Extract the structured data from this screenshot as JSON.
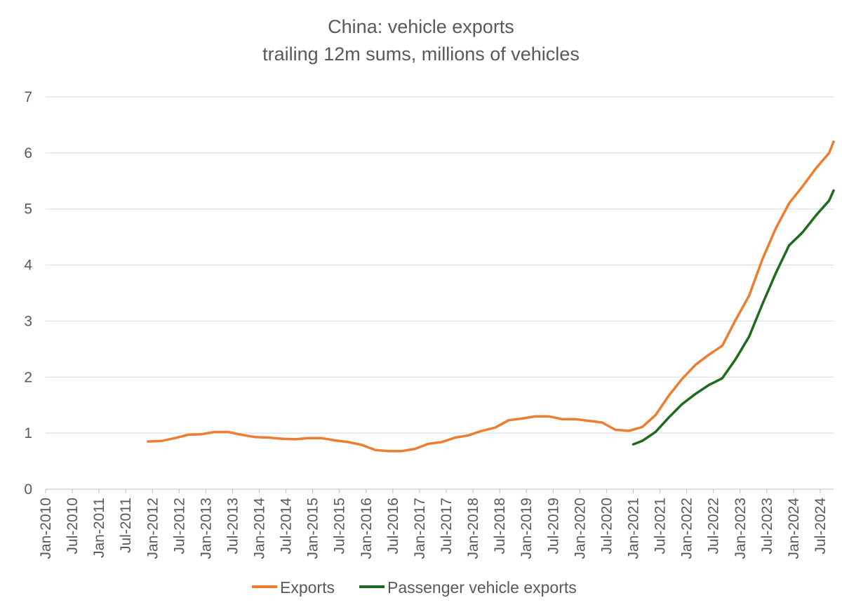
{
  "chart_data": {
    "type": "line",
    "title": "China: vehicle exports",
    "subtitle": "trailing 12m sums, millions of vehicles",
    "xlabel": "",
    "ylabel": "",
    "ylim": [
      0,
      7
    ],
    "yticks": [
      "0",
      "1",
      "2",
      "3",
      "4",
      "5",
      "6",
      "7"
    ],
    "xlim": [
      "2010-01",
      "2024-10"
    ],
    "xticks": [
      "Jan-2010",
      "Jul-2010",
      "Jan-2011",
      "Jul-2011",
      "Jan-2012",
      "Jul-2012",
      "Jan-2013",
      "Jul-2013",
      "Jan-2014",
      "Jul-2014",
      "Jan-2015",
      "Jul-2015",
      "Jan-2016",
      "Jul-2016",
      "Jan-2017",
      "Jul-2017",
      "Jan-2018",
      "Jul-2018",
      "Jan-2019",
      "Jul-2019",
      "Jan-2020",
      "Jul-2020",
      "Jan-2021",
      "Jul-2021",
      "Jan-2022",
      "Jul-2022",
      "Jan-2023",
      "Jul-2023",
      "Jan-2024",
      "Jul-2024"
    ],
    "grid": true,
    "legend_position": "bottom",
    "series": [
      {
        "name": "Exports",
        "color": "#ED7D31",
        "points": [
          [
            "2011-12",
            0.85
          ],
          [
            "2012-03",
            0.86
          ],
          [
            "2012-06",
            0.91
          ],
          [
            "2012-09",
            0.97
          ],
          [
            "2012-12",
            0.98
          ],
          [
            "2013-03",
            1.02
          ],
          [
            "2013-06",
            1.02
          ],
          [
            "2013-09",
            0.97
          ],
          [
            "2013-12",
            0.93
          ],
          [
            "2014-03",
            0.92
          ],
          [
            "2014-06",
            0.9
          ],
          [
            "2014-09",
            0.89
          ],
          [
            "2014-12",
            0.91
          ],
          [
            "2015-03",
            0.91
          ],
          [
            "2015-06",
            0.87
          ],
          [
            "2015-09",
            0.84
          ],
          [
            "2015-12",
            0.79
          ],
          [
            "2016-03",
            0.7
          ],
          [
            "2016-06",
            0.68
          ],
          [
            "2016-09",
            0.68
          ],
          [
            "2016-12",
            0.72
          ],
          [
            "2017-03",
            0.81
          ],
          [
            "2017-06",
            0.84
          ],
          [
            "2017-09",
            0.92
          ],
          [
            "2017-12",
            0.96
          ],
          [
            "2018-03",
            1.04
          ],
          [
            "2018-06",
            1.1
          ],
          [
            "2018-09",
            1.23
          ],
          [
            "2018-12",
            1.26
          ],
          [
            "2019-03",
            1.3
          ],
          [
            "2019-06",
            1.3
          ],
          [
            "2019-09",
            1.25
          ],
          [
            "2019-12",
            1.25
          ],
          [
            "2020-03",
            1.22
          ],
          [
            "2020-06",
            1.19
          ],
          [
            "2020-09",
            1.06
          ],
          [
            "2020-12",
            1.04
          ],
          [
            "2021-03",
            1.11
          ],
          [
            "2021-06",
            1.32
          ],
          [
            "2021-09",
            1.67
          ],
          [
            "2021-12",
            1.97
          ],
          [
            "2022-03",
            2.22
          ],
          [
            "2022-06",
            2.4
          ],
          [
            "2022-09",
            2.56
          ],
          [
            "2022-12",
            3.02
          ],
          [
            "2023-03",
            3.45
          ],
          [
            "2023-06",
            4.1
          ],
          [
            "2023-09",
            4.65
          ],
          [
            "2023-12",
            5.1
          ],
          [
            "2024-03",
            5.4
          ],
          [
            "2024-06",
            5.72
          ],
          [
            "2024-09",
            6.0
          ],
          [
            "2024-10",
            6.2
          ]
        ]
      },
      {
        "name": "Passenger vehicle exports",
        "color": "#1E6B1E",
        "points": [
          [
            "2021-01",
            0.8
          ],
          [
            "2021-03",
            0.86
          ],
          [
            "2021-06",
            1.02
          ],
          [
            "2021-09",
            1.28
          ],
          [
            "2021-12",
            1.52
          ],
          [
            "2022-03",
            1.7
          ],
          [
            "2022-06",
            1.86
          ],
          [
            "2022-09",
            1.98
          ],
          [
            "2022-12",
            2.32
          ],
          [
            "2023-03",
            2.72
          ],
          [
            "2023-06",
            3.3
          ],
          [
            "2023-09",
            3.85
          ],
          [
            "2023-12",
            4.35
          ],
          [
            "2024-03",
            4.58
          ],
          [
            "2024-06",
            4.88
          ],
          [
            "2024-09",
            5.15
          ],
          [
            "2024-10",
            5.33
          ]
        ]
      }
    ]
  }
}
